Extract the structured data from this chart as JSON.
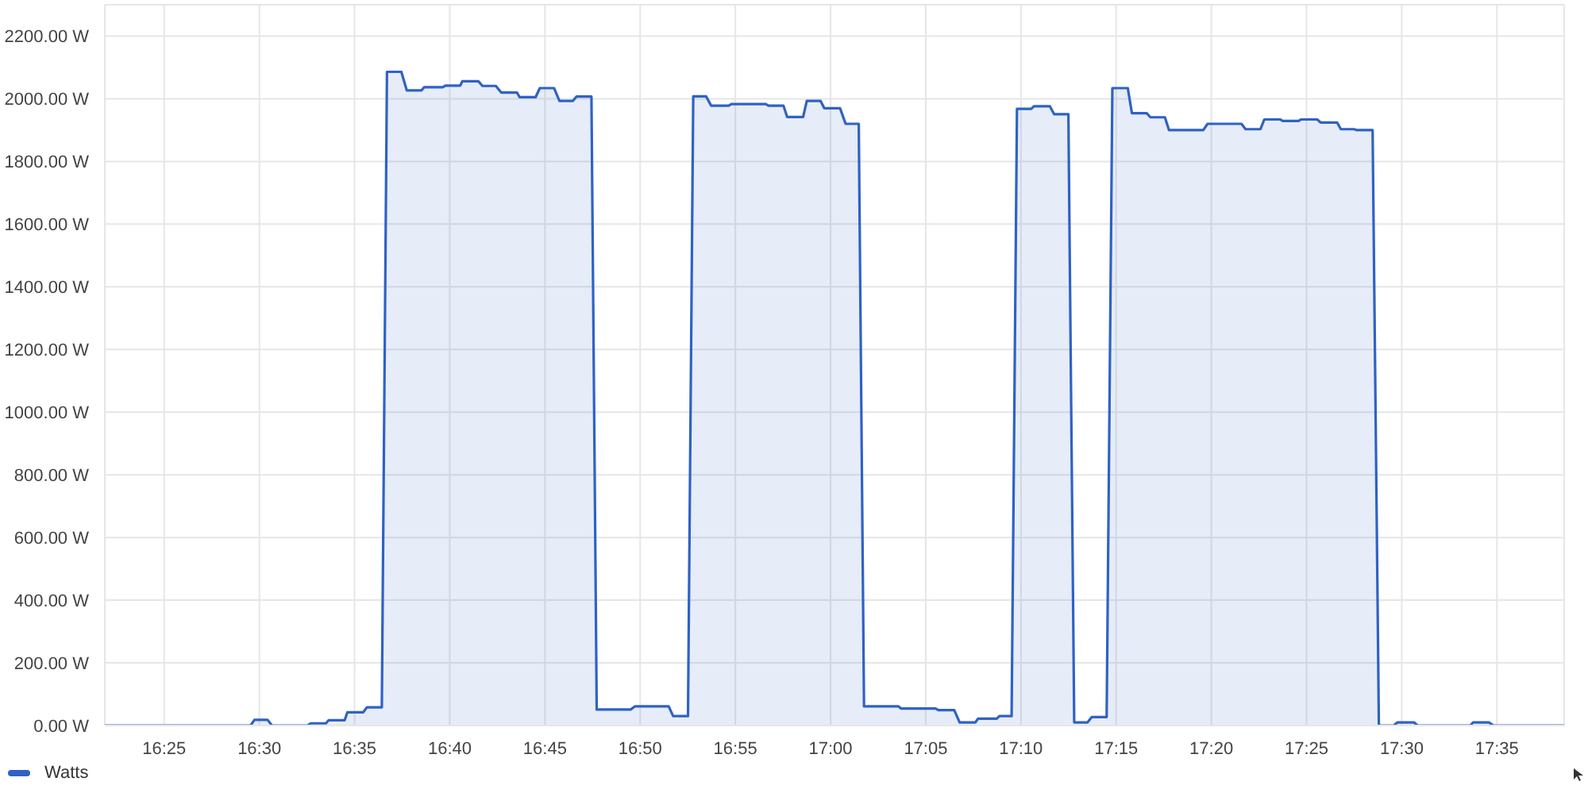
{
  "chart_data": {
    "type": "area",
    "x": [
      16.3647,
      16.4923,
      16.4957,
      16.5072,
      16.511,
      16.542,
      16.545,
      16.5583,
      16.5607,
      16.5747,
      16.577,
      16.5908,
      16.5942,
      16.6072,
      16.6117,
      16.6243,
      16.629,
      16.642,
      16.6443,
      16.6605,
      16.6628,
      16.6758,
      16.6777,
      16.6917,
      16.6953,
      16.707,
      16.7117,
      16.7255,
      16.7278,
      16.7418,
      16.7455,
      16.758,
      16.7627,
      16.7743,
      16.7777,
      16.7907,
      16.7953,
      16.825,
      16.8287,
      16.8583,
      16.8622,
      16.8752,
      16.8798,
      16.891,
      16.8955,
      16.9108,
      16.9132,
      16.9433,
      16.9457,
      16.9588,
      16.962,
      16.976,
      16.9792,
      16.9913,
      16.9945,
      17.0083,
      17.0132,
      17.0247,
      17.0293,
      17.0595,
      17.0618,
      17.092,
      17.0943,
      17.1083,
      17.113,
      17.1268,
      17.1292,
      17.1455,
      17.1478,
      17.1585,
      17.1632,
      17.1757,
      17.178,
      17.192,
      17.1957,
      17.2082,
      17.2133,
      17.225,
      17.2287,
      17.2417,
      17.2467,
      17.2602,
      17.2638,
      17.2768,
      17.28,
      17.2927,
      17.2963,
      17.3263,
      17.33,
      17.3597,
      17.3633,
      17.3763,
      17.3797,
      17.3935,
      17.3958,
      17.4097,
      17.412,
      17.426,
      17.4292,
      17.4435,
      17.4467,
      17.4583,
      17.4607,
      17.4745,
      17.48,
      17.493,
      17.4963,
      17.5107,
      17.5138,
      17.5602,
      17.5625,
      17.5763,
      17.5802,
      17.6422
    ],
    "series": [
      {
        "name": "Watts",
        "color": "#2f62c4",
        "values": [
          0,
          0,
          18,
          18,
          0,
          0,
          7,
          7,
          17,
          17,
          42,
          42,
          58,
          58,
          2086,
          2086,
          2027,
          2027,
          2037,
          2037,
          2042,
          2042,
          2056,
          2056,
          2041,
          2041,
          2020,
          2020,
          2005,
          2005,
          2034,
          2034,
          1993,
          1993,
          2007,
          2007,
          51,
          51,
          61,
          61,
          30,
          30,
          2008,
          2008,
          1978,
          1978,
          1983,
          1983,
          1978,
          1978,
          1942,
          1942,
          1993,
          1993,
          1970,
          1970,
          1920,
          1920,
          61,
          61,
          54,
          54,
          49,
          49,
          10,
          10,
          22,
          22,
          30,
          30,
          1968,
          1968,
          1976,
          1976,
          1951,
          1951,
          10,
          10,
          27,
          27,
          2034,
          2034,
          1954,
          1954,
          1941,
          1941,
          1900,
          1900,
          1920,
          1920,
          1903,
          1903,
          1934,
          1934,
          1929,
          1929,
          1934,
          1934,
          1924,
          1924,
          1903,
          1903,
          1900,
          1900,
          0,
          0,
          10,
          10,
          0,
          0,
          10,
          10,
          0,
          0
        ]
      }
    ],
    "xlim": [
      16.3647,
      17.6422
    ],
    "xticks": [
      {
        "value": 16.41667,
        "label": "16:25"
      },
      {
        "value": 16.5,
        "label": "16:30"
      },
      {
        "value": 16.58333,
        "label": "16:35"
      },
      {
        "value": 16.66667,
        "label": "16:40"
      },
      {
        "value": 16.75,
        "label": "16:45"
      },
      {
        "value": 16.83333,
        "label": "16:50"
      },
      {
        "value": 16.91667,
        "label": "16:55"
      },
      {
        "value": 17,
        "label": "17:00"
      },
      {
        "value": 17.08333,
        "label": "17:05"
      },
      {
        "value": 17.16667,
        "label": "17:10"
      },
      {
        "value": 17.25,
        "label": "17:15"
      },
      {
        "value": 17.33333,
        "label": "17:20"
      },
      {
        "value": 17.41667,
        "label": "17:25"
      },
      {
        "value": 17.5,
        "label": "17:30"
      },
      {
        "value": 17.58333,
        "label": "17:35"
      }
    ],
    "ylim": [
      0,
      2300
    ],
    "yticks": [
      {
        "value": 0,
        "label": "0.00 W"
      },
      {
        "value": 200,
        "label": "200.00 W"
      },
      {
        "value": 400,
        "label": "400.00 W"
      },
      {
        "value": 600,
        "label": "600.00 W"
      },
      {
        "value": 800,
        "label": "800.00 W"
      },
      {
        "value": 1000,
        "label": "1000.00 W"
      },
      {
        "value": 1200,
        "label": "1200.00 W"
      },
      {
        "value": 1400,
        "label": "1400.00 W"
      },
      {
        "value": 1600,
        "label": "1600.00 W"
      },
      {
        "value": 1800,
        "label": "1800.00 W"
      },
      {
        "value": 2000,
        "label": "2000.00 W"
      },
      {
        "value": 2200,
        "label": "2200.00 W"
      }
    ],
    "grid": true,
    "legend": "bottom left"
  }
}
